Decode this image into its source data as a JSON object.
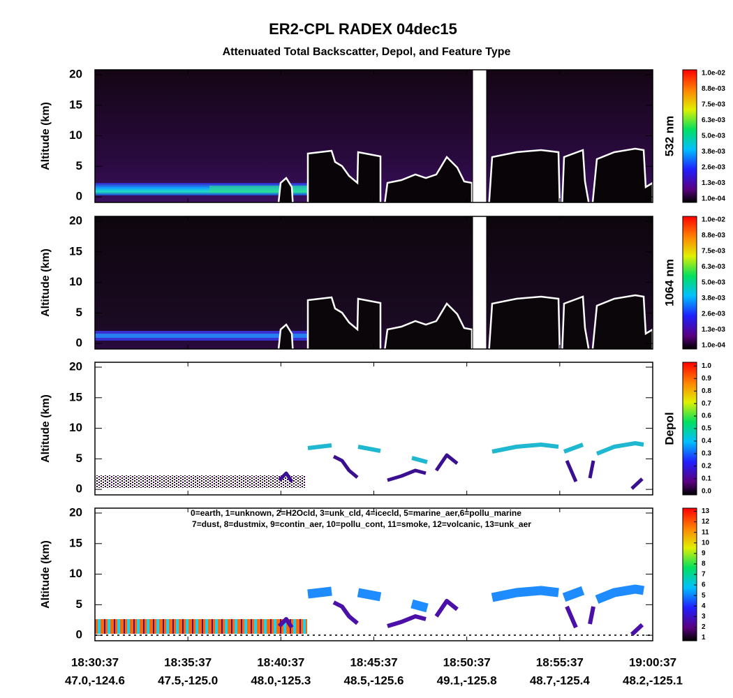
{
  "title": "ER2-CPL RADEX 04dec15",
  "subtitle": "Attenuated Total Backscatter, Depol, and Feature Type",
  "x_axis": {
    "ticks": [
      {
        "time": "18:30:37",
        "position": "47.0,-124.6"
      },
      {
        "time": "18:35:37",
        "position": "47.5,-125.0"
      },
      {
        "time": "18:40:37",
        "position": "48.0,-125.3"
      },
      {
        "time": "18:45:37",
        "position": "48.5,-125.6"
      },
      {
        "time": "18:50:37",
        "position": "49.1,-125.8"
      },
      {
        "time": "18:55:37",
        "position": "48.7,-125.4"
      },
      {
        "time": "19:00:37",
        "position": "48.2,-125.1"
      }
    ]
  },
  "panels": [
    {
      "y_label": "Altitude (km)",
      "ylim": [
        -0.9,
        20.8
      ],
      "yticks": [
        0,
        5,
        10,
        15,
        20
      ],
      "colorbar": {
        "label": "532 nm",
        "tick_labels": [
          "1.0e-02",
          "8.8e-03",
          "7.5e-03",
          "6.3e-03",
          "5.0e-03",
          "3.8e-03",
          "2.6e-03",
          "1.3e-03",
          "1.0e-04"
        ]
      }
    },
    {
      "y_label": "Altitude (km)",
      "ylim": [
        -0.9,
        20.8
      ],
      "yticks": [
        0,
        5,
        10,
        15,
        20
      ],
      "colorbar": {
        "label": "1064 nm",
        "tick_labels": [
          "1.0e-02",
          "8.8e-03",
          "7.5e-03",
          "6.3e-03",
          "5.0e-03",
          "3.8e-03",
          "2.6e-03",
          "1.3e-03",
          "1.0e-04"
        ]
      }
    },
    {
      "y_label": "Altitude (km)",
      "ylim": [
        -0.9,
        20.8
      ],
      "yticks": [
        0,
        5,
        10,
        15,
        20
      ],
      "colorbar": {
        "label": "Depol",
        "clim": [
          -0.03,
          1.03
        ],
        "ticks": [
          {
            "value": 1,
            "label": "1.0"
          },
          {
            "value": 0.9,
            "label": "0.9"
          },
          {
            "value": 0.8,
            "label": "0.8"
          },
          {
            "value": 0.7,
            "label": "0.7"
          },
          {
            "value": 0.6,
            "label": "0.6"
          },
          {
            "value": 0.5,
            "label": "0.5"
          },
          {
            "value": 0.4,
            "label": "0.4"
          },
          {
            "value": 0.3,
            "label": "0.3"
          },
          {
            "value": 0.2,
            "label": "0.2"
          },
          {
            "value": 0.1,
            "label": "0.1"
          },
          {
            "value": 0,
            "label": "0.0"
          }
        ]
      }
    },
    {
      "y_label": "Altitude (km)",
      "ylim": [
        -0.9,
        20.8
      ],
      "yticks": [
        0,
        5,
        10,
        15,
        20
      ],
      "legend_lines": [
        "0=earth, 1=unknown, 2=H2Ocld, 3=unk_cld, 4=icecld, 5=marine_aer,6=pollu_marine",
        "7=dust, 8=dustmix, 9=contin_aer, 10=pollu_cont, 11=smoke, 12=volcanic, 13=unk_aer"
      ],
      "colorbar": {
        "clim": [
          0.7,
          13.3
        ],
        "ticks": [
          13,
          12,
          11,
          10,
          9,
          8,
          7,
          6,
          5,
          4,
          3,
          2,
          1
        ]
      }
    }
  ]
}
